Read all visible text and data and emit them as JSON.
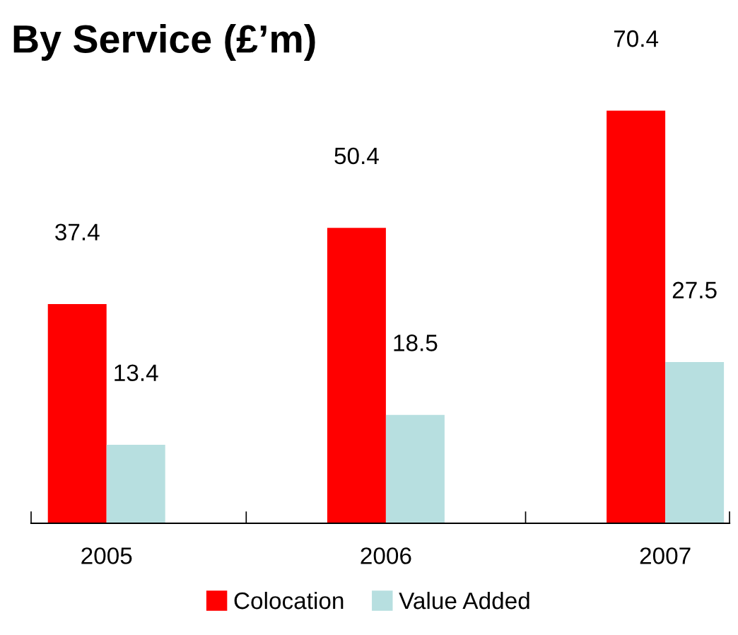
{
  "chart_data": {
    "type": "bar",
    "title": "By Service (£’m)",
    "categories": [
      "2005",
      "2006",
      "2007"
    ],
    "series": [
      {
        "name": "Colocation",
        "color": "#ff0000",
        "values": [
          37.4,
          50.4,
          70.4
        ]
      },
      {
        "name": "Value Added",
        "color": "#b7dfe0",
        "values": [
          13.4,
          18.5,
          27.5
        ]
      }
    ],
    "data_labels": true,
    "legend": "bottom",
    "grid": false
  }
}
